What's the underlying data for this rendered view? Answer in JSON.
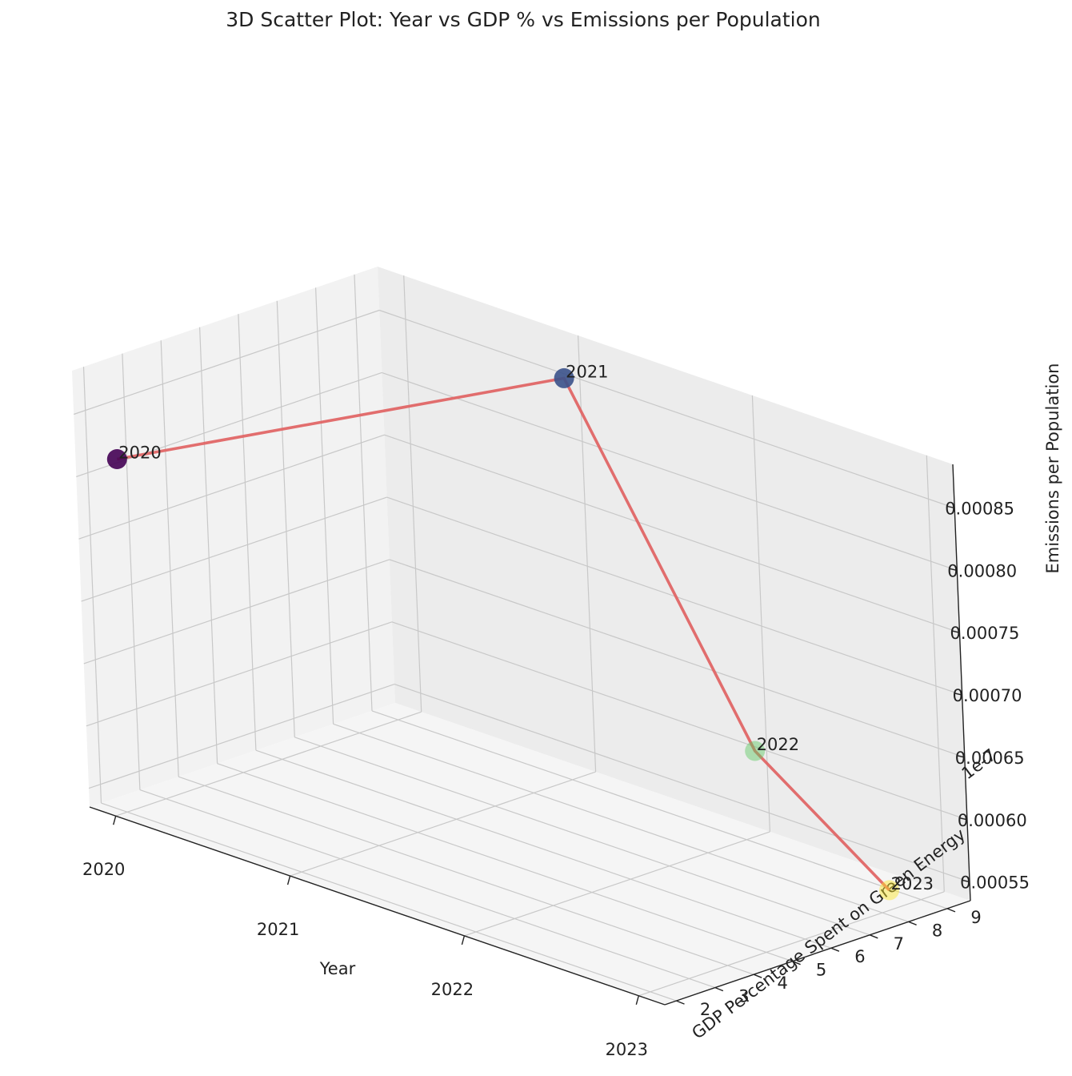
{
  "chart_data": {
    "type": "scatter",
    "projection": "3d",
    "title": "3D Scatter Plot: Year vs GDP % vs Emissions per Population",
    "xlabel": "Year",
    "ylabel": "GDP Percentage Spent on Green Energy",
    "zlabel": "Emissions per Population",
    "y_offset_label": "1e-7",
    "x_ticks": [
      "2020",
      "2021",
      "2022",
      "2023"
    ],
    "y_ticks": [
      "2",
      "3",
      "4",
      "5",
      "6",
      "7",
      "8",
      "9"
    ],
    "z_ticks": [
      "0.00055",
      "0.00060",
      "0.00065",
      "0.00070",
      "0.00075",
      "0.00080",
      "0.00085"
    ],
    "xlim": [
      2019.85,
      2023.15
    ],
    "ylim": [
      1.7,
      9.6
    ],
    "zlim": [
      0.000535,
      0.000885
    ],
    "grid": true,
    "line_color": "#e06666",
    "marker_colors": [
      "#440154",
      "#3b528b",
      "#5ec962",
      "#fde725"
    ],
    "points": [
      {
        "label": "2020",
        "x": 2020,
        "y": 2.1,
        "z": 0.000817
      },
      {
        "label": "2021",
        "x": 2021,
        "y": 9.2,
        "z": 0.000855
      },
      {
        "label": "2022",
        "x": 2022,
        "y": 9.3,
        "z": 0.000603
      },
      {
        "label": "2023",
        "x": 2023,
        "y": 8.2,
        "z": 0.000551
      }
    ]
  }
}
